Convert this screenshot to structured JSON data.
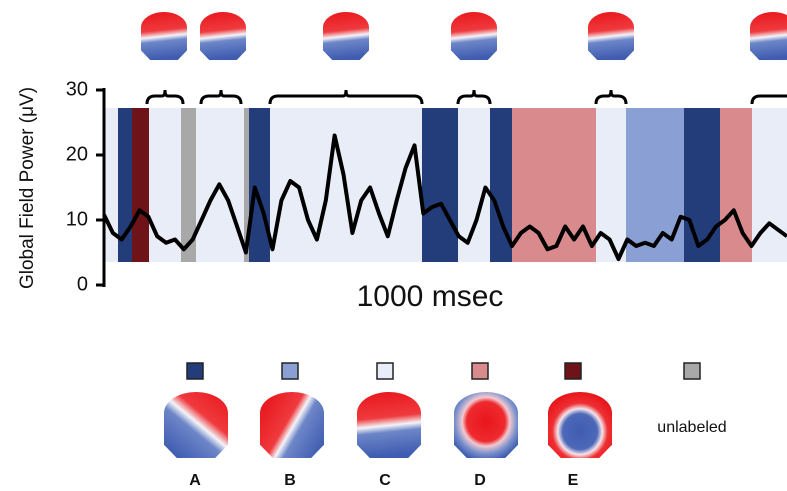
{
  "chart_data": {
    "type": "line",
    "ylabel": "Global Field Power (μV)",
    "xlabel": "1000 msec",
    "ylim": [
      0,
      30
    ],
    "yticks": [
      0,
      10,
      20,
      30
    ],
    "color": "#000000",
    "values": [
      10.8,
      8,
      7,
      9,
      11.5,
      10.5,
      7.5,
      6.5,
      7,
      5.5,
      7,
      10,
      13,
      15.5,
      13,
      9,
      5,
      15,
      11,
      5.5,
      13,
      16,
      15,
      10,
      7,
      13,
      23,
      17,
      8,
      13,
      15,
      11,
      7.5,
      13,
      18,
      21.5,
      11,
      12,
      12.5,
      10,
      7.5,
      6.5,
      10,
      15,
      13,
      9,
      6,
      8,
      9,
      8,
      5.5,
      6,
      9,
      7,
      9,
      6,
      8,
      7,
      4,
      7,
      6,
      6.5,
      6,
      8,
      7,
      10.5,
      10,
      6,
      7,
      9,
      10,
      11.5,
      8,
      6,
      8,
      9.5,
      8.5,
      7.5
    ],
    "legend": [
      {
        "name": "A",
        "color": "#233c7a"
      },
      {
        "name": "B",
        "color": "#8aa0d4"
      },
      {
        "name": "C",
        "color": "#e9edf8"
      },
      {
        "name": "D",
        "color": "#d98a8d"
      },
      {
        "name": "E",
        "color": "#6e1419"
      },
      {
        "name": "unlabeled",
        "color": "#a8a8a8"
      }
    ]
  }
}
